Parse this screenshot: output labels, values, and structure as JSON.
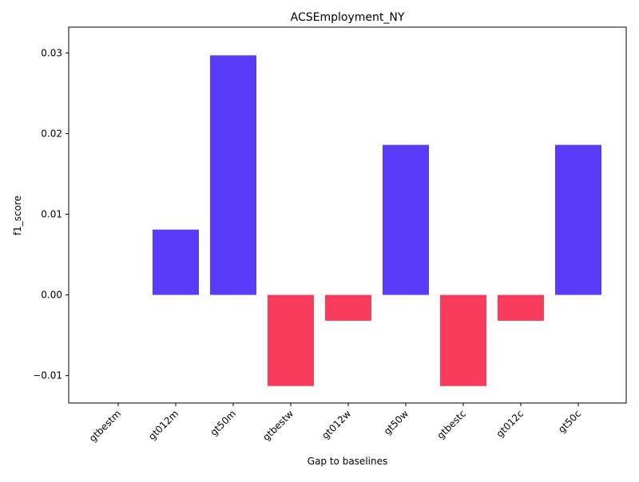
{
  "chart_data": {
    "type": "bar",
    "title": "ACSEmployment_NY",
    "xlabel": "Gap to baselines",
    "ylabel": "f1_score",
    "categories": [
      "gtbestm",
      "gt012m",
      "gt50m",
      "gtbestw",
      "gt012w",
      "gt50w",
      "gtbestc",
      "gt012c",
      "gt50c"
    ],
    "values": [
      0.0,
      0.0081,
      0.0297,
      -0.0113,
      -0.0032,
      0.0186,
      -0.0113,
      -0.0032,
      0.0186
    ],
    "ylim": [
      -0.0134,
      0.0332
    ],
    "yticks": [
      -0.01,
      0.0,
      0.01,
      0.02,
      0.03
    ],
    "ytick_labels": [
      "−0.01",
      "0.00",
      "0.01",
      "0.02",
      "0.03"
    ],
    "xtick_rotation_deg": 45,
    "grid": false,
    "legend": "none",
    "colors": {
      "positive": "#5b3af9",
      "negative": "#f73b5a",
      "axis": "#000000",
      "background": "#ffffff"
    }
  }
}
